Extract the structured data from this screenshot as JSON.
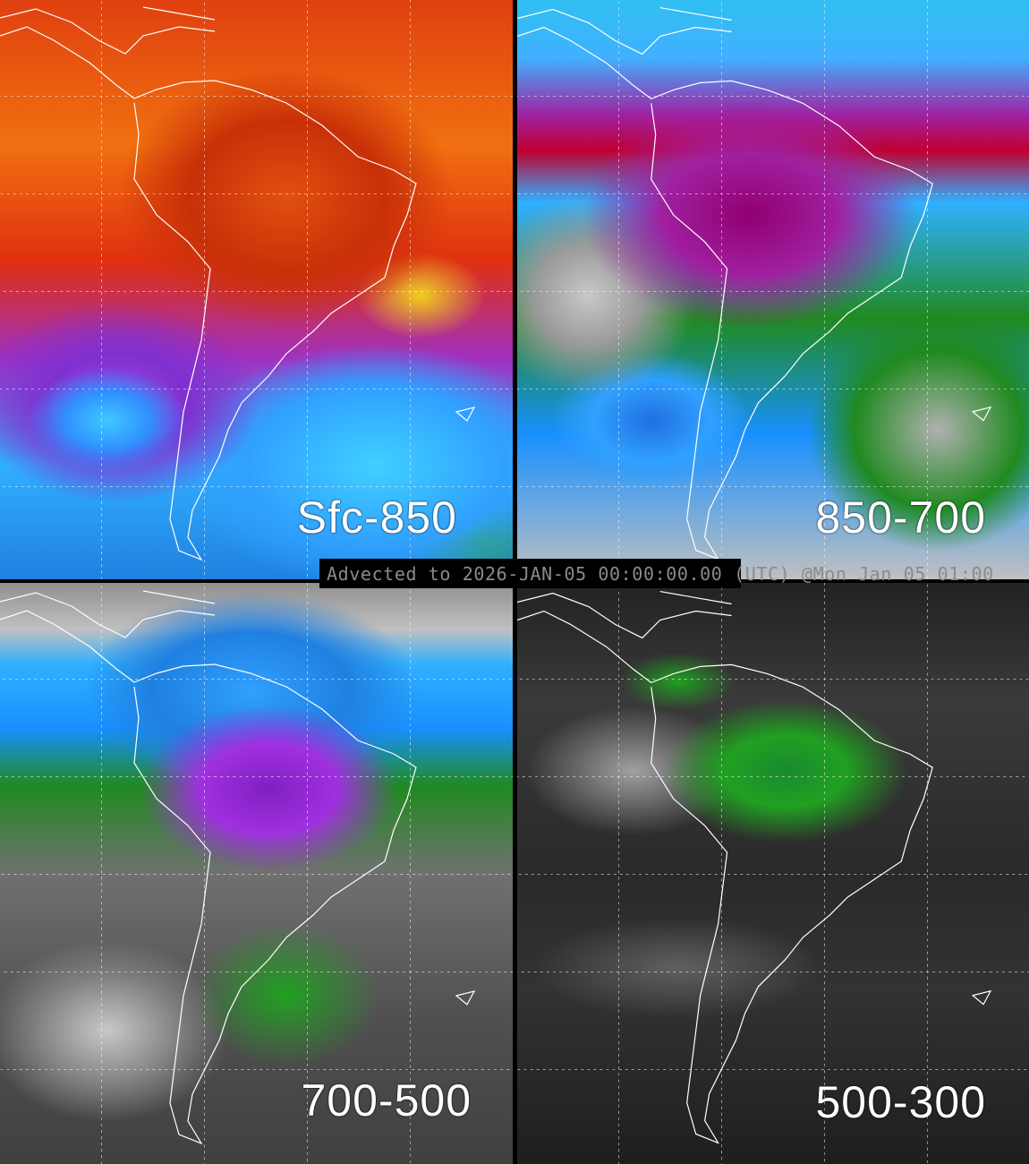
{
  "panels": [
    {
      "id": "sfc-850",
      "label": "Sfc-850"
    },
    {
      "id": "850-700",
      "label": "850-700"
    },
    {
      "id": "700-500",
      "label": "700-500"
    },
    {
      "id": "500-300",
      "label": "500-300"
    }
  ],
  "banner": {
    "text": "Advected to 2026-JAN-05 00:00:00.00 (UTC) @Mon Jan 05 01:00"
  },
  "colors": {
    "coastline": "#ffffff",
    "gridlines": "#ffffff",
    "divider": "#000000",
    "banner_text": "#8a8a8a"
  }
}
